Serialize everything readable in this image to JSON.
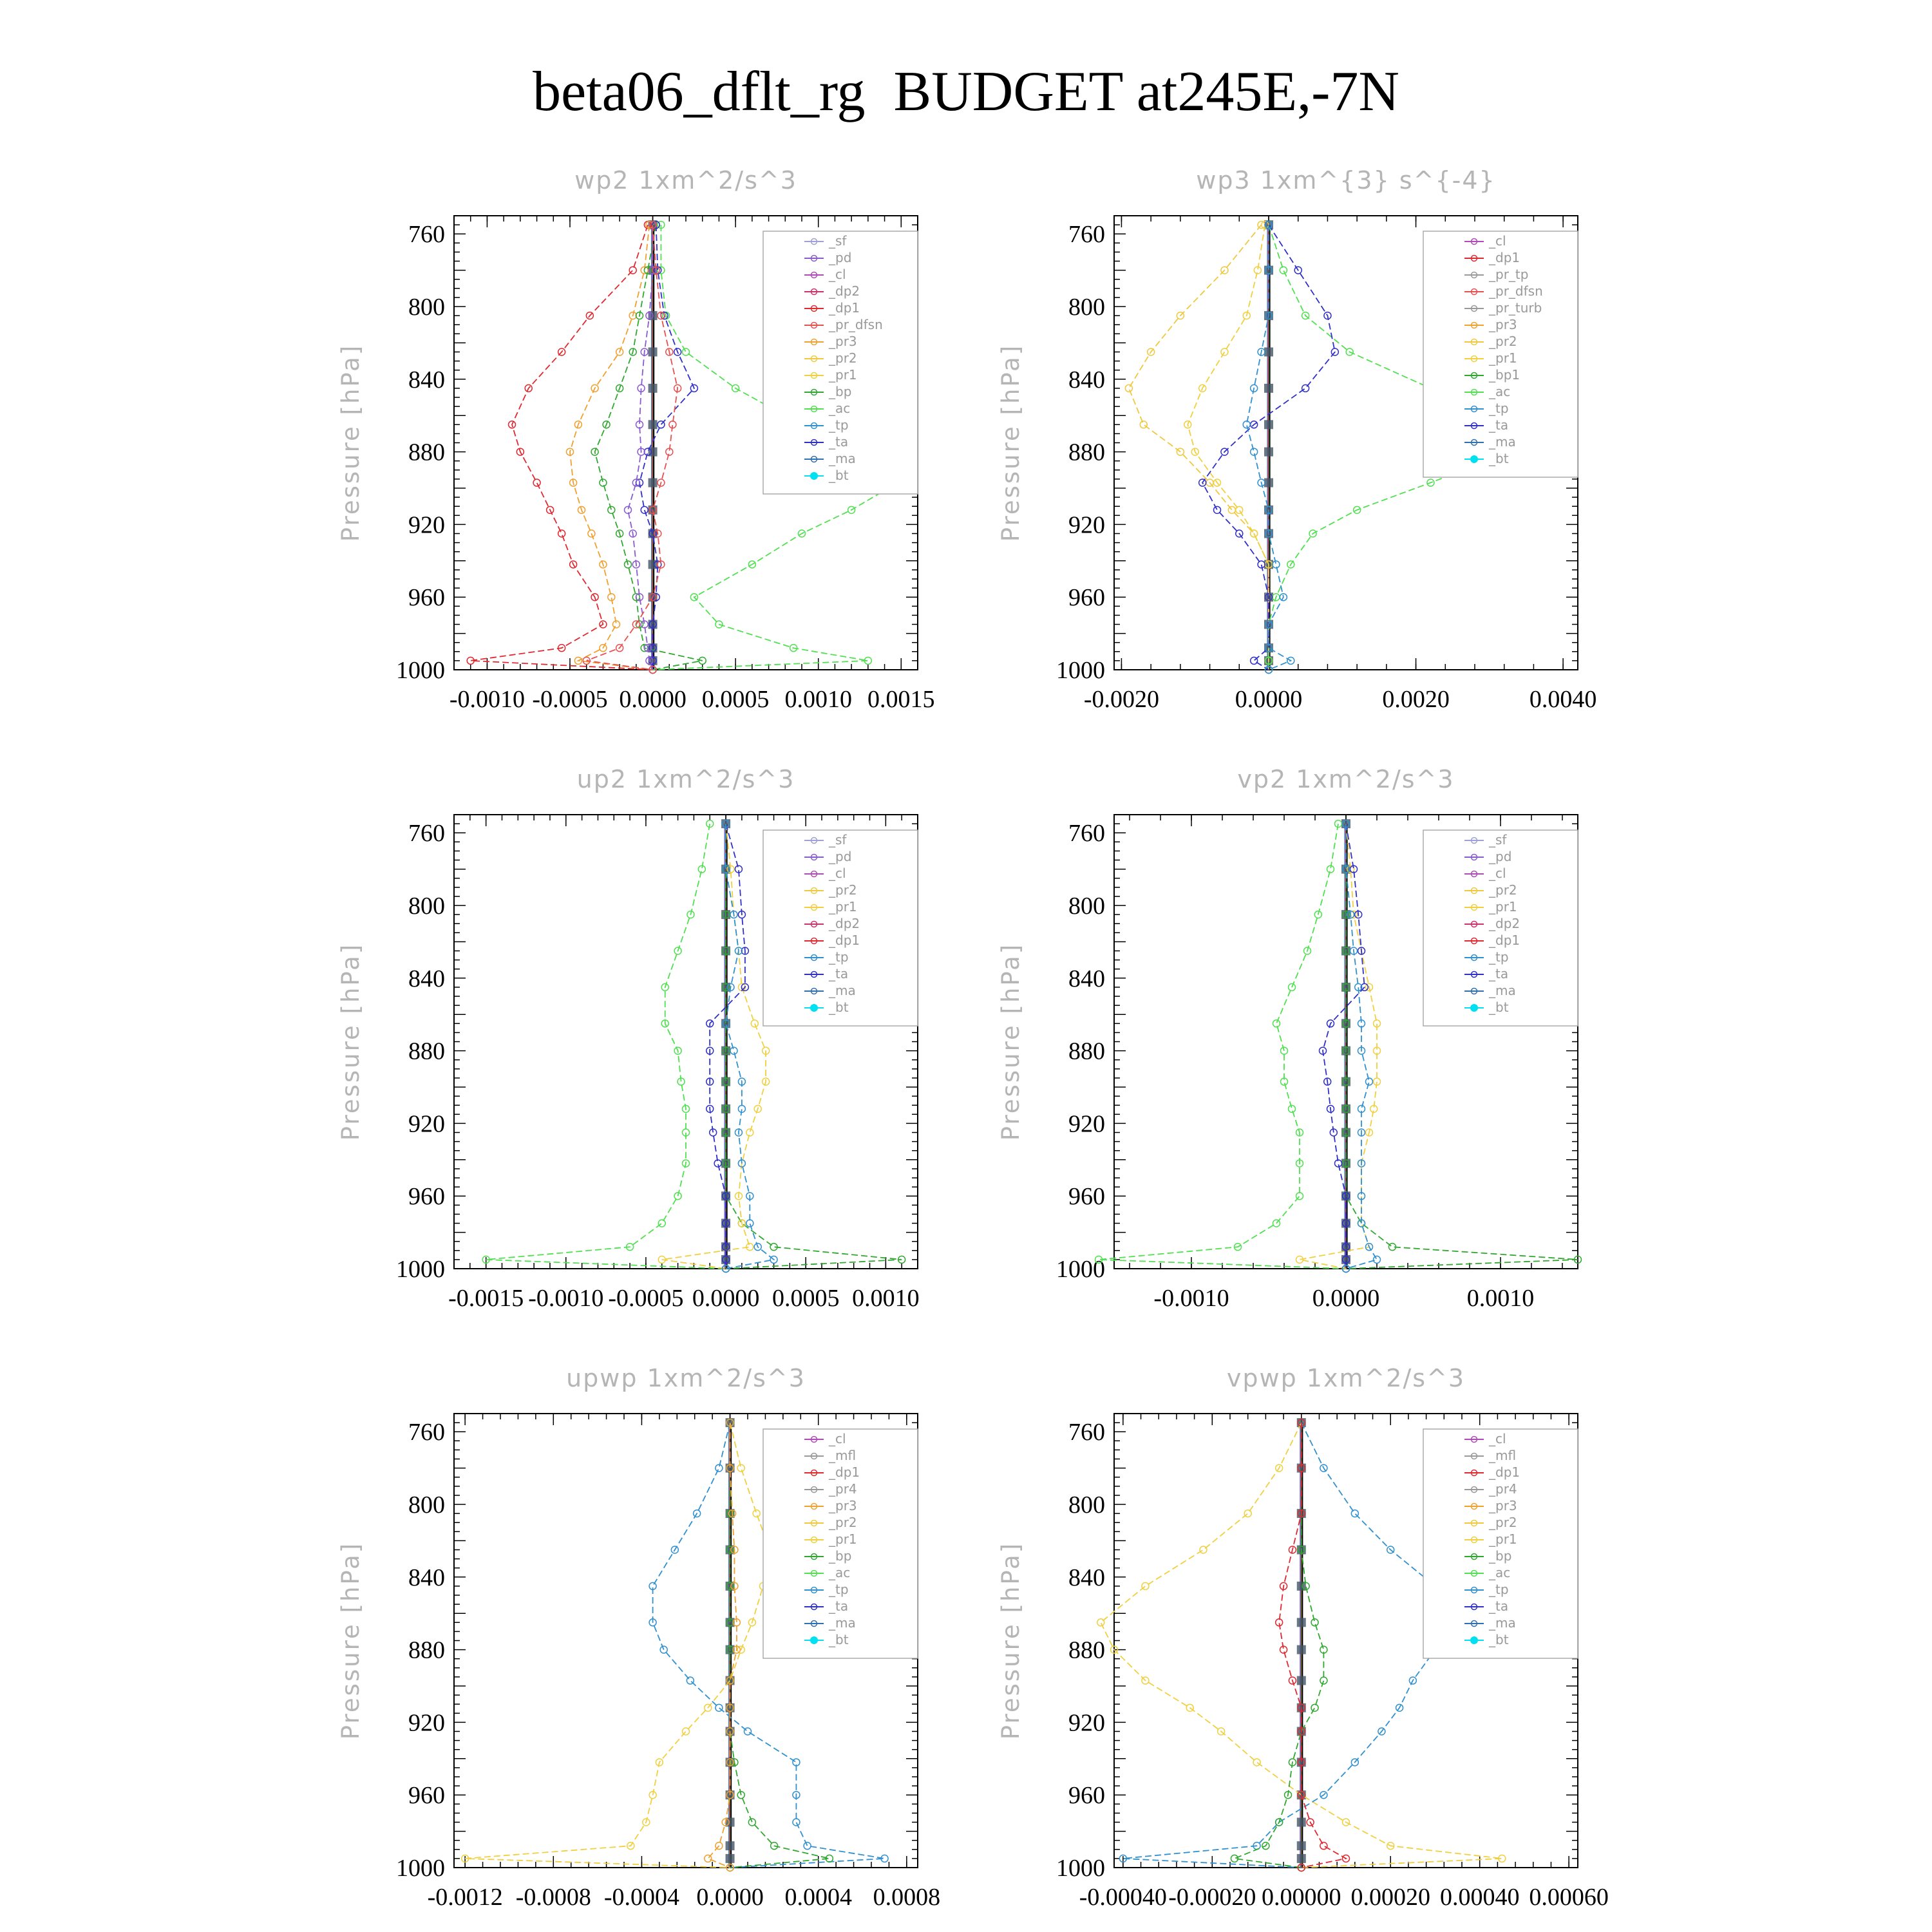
{
  "title": "beta06_dflt_rg  BUDGET at245E,-7N",
  "colors": {
    "sf": "#a0a0d8",
    "pd": "#8a5ad0",
    "cl": "#b04ab8",
    "dp2": "#d0306a",
    "dp1": "#e02830",
    "pr_dfsn": "#e85050",
    "pr3": "#f0a030",
    "pr2": "#f0c840",
    "pr1": "#f0d040",
    "bp": "#30a830",
    "ac": "#50e050",
    "tp": "#3090d0",
    "ta": "#3030c8",
    "ma": "#3070b0",
    "bt": "#00e0f0"
  },
  "chart_data": [
    {
      "type": "line",
      "title": "wp2   1xm^2/s^3",
      "ylabel": "Pressure [hPa]",
      "ylim": [
        1000,
        750
      ],
      "xlim": [
        -0.0012,
        0.0016
      ],
      "xticks": [
        -0.001,
        -0.0005,
        0.0,
        0.0005,
        0.001,
        0.0015
      ],
      "xtick_labels": [
        "-0.0010",
        "-0.0005",
        "0.0000",
        "0.0005",
        "0.0010",
        "0.0015"
      ],
      "yticks": [
        760,
        800,
        840,
        880,
        920,
        960,
        1000
      ],
      "legend": [
        "_sf",
        "_pd",
        "_cl",
        "_dp2",
        "_dp1",
        "_pr_dfsn",
        "_pr3",
        "_pr2",
        "_pr1",
        "_bp",
        "_ac",
        "_tp",
        "_ta",
        "_ma",
        "_bt"
      ],
      "levels": [
        755,
        780,
        805,
        825,
        845,
        865,
        880,
        897,
        912,
        925,
        942,
        960,
        975,
        988,
        995,
        1000
      ],
      "series": [
        {
          "name": "_dp1",
          "key": "dp1",
          "values": [
            -3e-05,
            -0.00012,
            -0.00038,
            -0.00055,
            -0.00075,
            -0.00085,
            -0.0008,
            -0.0007,
            -0.00062,
            -0.00055,
            -0.00048,
            -0.00035,
            -0.0003,
            -0.00055,
            -0.0011,
            0.0
          ]
        },
        {
          "name": "_pr3",
          "key": "pr3",
          "values": [
            -2e-05,
            -5e-05,
            -0.00012,
            -0.0002,
            -0.00035,
            -0.00045,
            -0.0005,
            -0.00048,
            -0.00043,
            -0.00037,
            -0.0003,
            -0.00025,
            -0.00022,
            -0.0003,
            -0.00045,
            0.0
          ]
        },
        {
          "name": "_bp",
          "key": "bp",
          "values": [
            2e-05,
            -3e-05,
            -8e-05,
            -0.00012,
            -0.0002,
            -0.00028,
            -0.00035,
            -0.0003,
            -0.00025,
            -0.0002,
            -0.00015,
            -0.0001,
            -8e-05,
            -5e-05,
            0.0003,
            0.0
          ]
        },
        {
          "name": "_ac",
          "key": "ac",
          "values": [
            5e-05,
            5e-05,
            8e-05,
            0.0002,
            0.0005,
            0.0009,
            0.00135,
            0.00148,
            0.0012,
            0.0009,
            0.0006,
            0.00025,
            0.0004,
            0.00085,
            0.0013,
            0.0
          ]
        },
        {
          "name": "_ta",
          "key": "ta",
          "values": [
            2e-05,
            3e-05,
            7e-05,
            0.00015,
            0.00025,
            5e-05,
            -3e-05,
            -8e-05,
            -5e-05,
            0.0,
            3e-05,
            2e-05,
            0.0,
            0.0,
            0.0,
            0.0
          ]
        },
        {
          "name": "_pd",
          "key": "pd",
          "values": [
            0.0,
            0.0,
            -2e-05,
            -5e-05,
            -7e-05,
            -8e-05,
            -7e-05,
            -0.0001,
            -0.00015,
            -0.00012,
            -0.0001,
            -8e-05,
            -5e-05,
            -3e-05,
            -2e-05,
            0.0
          ]
        },
        {
          "name": "_pr_dfsn",
          "key": "pr_dfsn",
          "values": [
            0.0,
            2e-05,
            5e-05,
            0.0001,
            0.00015,
            0.00012,
            0.0001,
            5e-05,
            0.0,
            3e-05,
            5e-05,
            0.0,
            -0.0001,
            -0.0002,
            -0.0004,
            0.0
          ]
        }
      ]
    },
    {
      "type": "line",
      "title": "wp3   1xm^{3} s^{-4}",
      "ylabel": "Pressure [hPa]",
      "ylim": [
        1000,
        750
      ],
      "xlim": [
        -0.0021,
        0.0042
      ],
      "xticks": [
        -0.002,
        0.0,
        0.002,
        0.004
      ],
      "xtick_labels": [
        "-0.0020",
        "0.0000",
        "0.0020",
        "0.0040"
      ],
      "yticks": [
        760,
        800,
        840,
        880,
        920,
        960,
        1000
      ],
      "legend": [
        "_cl",
        "_dp1",
        "_pr_tp",
        "_pr_dfsn",
        "_pr_turb",
        "_pr3",
        "_pr2",
        "_pr1",
        "_bp1",
        "_ac",
        "_tp",
        "_ta",
        "_ma",
        "_bt"
      ],
      "levels": [
        755,
        780,
        805,
        825,
        845,
        865,
        880,
        897,
        912,
        925,
        942,
        960,
        975,
        988,
        995,
        1000
      ],
      "series": [
        {
          "name": "_pr2",
          "key": "pr2",
          "values": [
            -0.0001,
            -0.0006,
            -0.0012,
            -0.0016,
            -0.0019,
            -0.0017,
            -0.0012,
            -0.0008,
            -0.0005,
            -0.0002,
            0.0,
            0.0,
            0.0,
            0.0,
            0.0,
            0.0
          ]
        },
        {
          "name": "_pr1",
          "key": "pr1",
          "values": [
            -5e-05,
            -0.00015,
            -0.0003,
            -0.0006,
            -0.0009,
            -0.0011,
            -0.001,
            -0.0007,
            -0.0004,
            -0.0002,
            0.0,
            0.0,
            0.0,
            0.0,
            0.0,
            0.0
          ]
        },
        {
          "name": "_ac",
          "key": "ac",
          "values": [
            0.0,
            0.0002,
            0.0005,
            0.0011,
            0.0022,
            0.0033,
            0.0033,
            0.0022,
            0.0012,
            0.0006,
            0.0003,
            0.0001,
            0.0,
            0.0,
            0.0,
            0.0
          ]
        },
        {
          "name": "_ta",
          "key": "ta",
          "values": [
            0.0,
            0.0004,
            0.0008,
            0.0009,
            0.0005,
            -0.0002,
            -0.0006,
            -0.0009,
            -0.0007,
            -0.0004,
            -0.0001,
            0.0,
            0.0,
            0.0,
            -0.0002,
            0.0
          ]
        },
        {
          "name": "_tp",
          "key": "tp",
          "values": [
            0.0,
            0.0,
            0.0,
            -0.0001,
            -0.0002,
            -0.0003,
            -0.0002,
            -0.0001,
            0.0,
            0.0,
            0.0001,
            0.0002,
            0.0,
            0.0,
            0.0003,
            0.0
          ]
        }
      ]
    },
    {
      "type": "line",
      "title": "up2   1xm^2/s^3",
      "ylabel": "Pressure [hPa]",
      "ylim": [
        1000,
        750
      ],
      "xlim": [
        -0.0017,
        0.0012
      ],
      "xticks": [
        -0.0015,
        -0.001,
        -0.0005,
        0.0,
        0.0005,
        0.001
      ],
      "xtick_labels": [
        "-0.0015",
        "-0.0010",
        "-0.0005",
        "0.0000",
        "0.0005",
        "0.0010"
      ],
      "yticks": [
        760,
        800,
        840,
        880,
        920,
        960,
        1000
      ],
      "legend": [
        "_sf",
        "_pd",
        "_cl",
        "_pr2",
        "_pr1",
        "_dp2",
        "_dp1",
        "_tp",
        "_ta",
        "_ma",
        "_bt"
      ],
      "levels": [
        755,
        780,
        805,
        825,
        845,
        865,
        880,
        897,
        912,
        925,
        942,
        960,
        975,
        988,
        995,
        1000
      ],
      "series": [
        {
          "name": "_dp1",
          "key": "ac",
          "values": [
            -0.0001,
            -0.00015,
            -0.00022,
            -0.0003,
            -0.00038,
            -0.00038,
            -0.0003,
            -0.00028,
            -0.00025,
            -0.00025,
            -0.00025,
            -0.0003,
            -0.0004,
            -0.0006,
            -0.0015,
            0.0
          ]
        },
        {
          "name": "_dp2",
          "key": "bp",
          "values": [
            0.0,
            0.0,
            0.0,
            0.0,
            0.0,
            0.0,
            0.0,
            0.0,
            0.0,
            0.0,
            0.0,
            0.0,
            0.0001,
            0.0003,
            0.0011,
            0.0
          ]
        },
        {
          "name": "_pr1",
          "key": "pr1",
          "values": [
            0.0,
            3e-05,
            5e-05,
            8e-05,
            0.0001,
            0.00018,
            0.00025,
            0.00025,
            0.0002,
            0.00015,
            0.0001,
            8e-05,
            0.0001,
            0.00015,
            -0.0004,
            0.0
          ]
        },
        {
          "name": "_ta",
          "key": "ta",
          "values": [
            0.0,
            8e-05,
            0.0001,
            0.00012,
            0.00012,
            -0.0001,
            -0.0001,
            -0.0001,
            -0.0001,
            -8e-05,
            -5e-05,
            0.0,
            0.0,
            0.0,
            0.0,
            0.0
          ]
        },
        {
          "name": "_ma",
          "key": "tp",
          "values": [
            0.0,
            0.0,
            5e-05,
            8e-05,
            3e-05,
            0.0,
            5e-05,
            0.0001,
            0.0001,
            8e-05,
            0.0001,
            0.00015,
            0.00015,
            0.0002,
            0.0003,
            0.0
          ]
        }
      ]
    },
    {
      "type": "line",
      "title": "vp2   1xm^2/s^3",
      "ylabel": "Pressure [hPa]",
      "ylim": [
        1000,
        750
      ],
      "xlim": [
        -0.0015,
        0.0015
      ],
      "xticks": [
        -0.001,
        0.0,
        0.001
      ],
      "xtick_labels": [
        "-0.0010",
        "0.0000",
        "0.0010"
      ],
      "yticks": [
        760,
        800,
        840,
        880,
        920,
        960,
        1000
      ],
      "legend": [
        "_sf",
        "_pd",
        "_cl",
        "_pr2",
        "_pr1",
        "_dp2",
        "_dp1",
        "_tp",
        "_ta",
        "_ma",
        "_bt"
      ],
      "levels": [
        755,
        780,
        805,
        825,
        845,
        865,
        880,
        897,
        912,
        925,
        942,
        960,
        975,
        988,
        995,
        1000
      ],
      "series": [
        {
          "name": "_dp1",
          "key": "ac",
          "values": [
            -5e-05,
            -0.0001,
            -0.00018,
            -0.00025,
            -0.00035,
            -0.00045,
            -0.0004,
            -0.0004,
            -0.00035,
            -0.0003,
            -0.0003,
            -0.0003,
            -0.00045,
            -0.0007,
            -0.0016,
            0.0
          ]
        },
        {
          "name": "_dp2",
          "key": "bp",
          "values": [
            0.0,
            0.0,
            0.0,
            0.0,
            0.0,
            0.0,
            0.0,
            0.0,
            0.0,
            0.0,
            0.0,
            0.0,
            0.0001,
            0.0003,
            0.0015,
            0.0
          ]
        },
        {
          "name": "_pr1",
          "key": "pr1",
          "values": [
            0.0,
            3e-05,
            5e-05,
            0.0001,
            0.00015,
            0.0002,
            0.0002,
            0.0002,
            0.00018,
            0.00015,
            0.0001,
            0.0001,
            0.0001,
            0.00015,
            -0.0003,
            0.0
          ]
        },
        {
          "name": "_ta",
          "key": "ta",
          "values": [
            0.0,
            5e-05,
            8e-05,
            0.0001,
            0.00012,
            -0.0001,
            -0.00015,
            -0.00012,
            -0.0001,
            -8e-05,
            -5e-05,
            0.0,
            0.0,
            0.0,
            0.0,
            0.0
          ]
        },
        {
          "name": "_ma",
          "key": "tp",
          "values": [
            0.0,
            0.0,
            3e-05,
            5e-05,
            8e-05,
            0.0001,
            0.0001,
            0.00015,
            0.0001,
            0.0001,
            0.0001,
            0.0001,
            0.0001,
            0.00015,
            0.0002,
            0.0
          ]
        }
      ]
    },
    {
      "type": "line",
      "title": "upwp   1xm^2/s^3",
      "ylabel": "Pressure [hPa]",
      "ylim": [
        1000,
        750
      ],
      "xlim": [
        -0.00125,
        0.00085
      ],
      "xticks": [
        -0.0012,
        -0.0008,
        -0.0004,
        0.0,
        0.0004,
        0.0008
      ],
      "xtick_labels": [
        "-0.0012",
        "-0.0008",
        "-0.0004",
        "0.0000",
        "0.0004",
        "0.0008"
      ],
      "yticks": [
        760,
        800,
        840,
        880,
        920,
        960,
        1000
      ],
      "legend": [
        "_cl",
        "_mfl",
        "_dp1",
        "_pr4",
        "_pr3",
        "_pr2",
        "_pr1",
        "_bp",
        "_ac",
        "_tp",
        "_ta",
        "_ma",
        "_bt"
      ],
      "levels": [
        755,
        780,
        805,
        825,
        845,
        865,
        880,
        897,
        912,
        925,
        942,
        960,
        975,
        988,
        995,
        1000
      ],
      "series": [
        {
          "name": "_pr1",
          "key": "pr1",
          "values": [
            0.0,
            5e-05,
            0.00012,
            0.00018,
            0.00015,
            0.0001,
            5e-05,
            0.0,
            -0.0001,
            -0.0002,
            -0.00032,
            -0.00035,
            -0.00038,
            -0.00045,
            -0.0012,
            0.0
          ]
        },
        {
          "name": "_ma",
          "key": "tp",
          "values": [
            0.0,
            -5e-05,
            -0.00015,
            -0.00025,
            -0.00035,
            -0.00035,
            -0.0003,
            -0.00018,
            -5e-05,
            8e-05,
            0.0003,
            0.0003,
            0.0003,
            0.00035,
            0.0007,
            0.0
          ]
        },
        {
          "name": "_bp",
          "key": "bp",
          "values": [
            0.0,
            0.0,
            0.0,
            0.0,
            0.0,
            0.0,
            0.0,
            0.0,
            0.0,
            0.0,
            2e-05,
            5e-05,
            0.0001,
            0.0002,
            0.00045,
            0.0
          ]
        },
        {
          "name": "_pr3",
          "key": "pr3",
          "values": [
            0.0,
            0.0,
            1e-05,
            2e-05,
            2e-05,
            3e-05,
            3e-05,
            0.0,
            0.0,
            0.0,
            0.0,
            0.0,
            -2e-05,
            -5e-05,
            -0.0001,
            0.0
          ]
        }
      ]
    },
    {
      "type": "line",
      "title": "vpwp   1xm^2/s^3",
      "ylabel": "Pressure [hPa]",
      "ylim": [
        1000,
        750
      ],
      "xlim": [
        -0.00042,
        0.00062
      ],
      "xticks": [
        -0.0004,
        -0.0002,
        0.0,
        0.0002,
        0.0004,
        0.0006
      ],
      "xtick_labels": [
        "-0.00040",
        "-0.00020",
        "0.00000",
        "0.00020",
        "0.00040",
        "0.00060"
      ],
      "yticks": [
        760,
        800,
        840,
        880,
        920,
        960,
        1000
      ],
      "legend": [
        "_cl",
        "_mfl",
        "_dp1",
        "_pr4",
        "_pr3",
        "_pr2",
        "_pr1",
        "_bp",
        "_ac",
        "_tp",
        "_ta",
        "_ma",
        "_bt"
      ],
      "levels": [
        755,
        780,
        805,
        825,
        845,
        865,
        880,
        897,
        912,
        925,
        942,
        960,
        975,
        988,
        995,
        1000
      ],
      "series": [
        {
          "name": "_pr1",
          "key": "pr1",
          "values": [
            0.0,
            -5e-05,
            -0.00012,
            -0.00022,
            -0.00035,
            -0.00045,
            -0.00042,
            -0.00035,
            -0.00025,
            -0.00018,
            -0.0001,
            0.0,
            0.0001,
            0.0002,
            0.00045,
            0.0
          ]
        },
        {
          "name": "_ma",
          "key": "tp",
          "values": [
            0.0,
            5e-05,
            0.00012,
            0.0002,
            0.0003,
            0.00035,
            0.0003,
            0.00025,
            0.00022,
            0.00018,
            0.00012,
            5e-05,
            -5e-05,
            -0.0001,
            -0.0004,
            0.0
          ]
        },
        {
          "name": "_bp",
          "key": "bp",
          "values": [
            0.0,
            0.0,
            0.0,
            0.0,
            1e-05,
            3e-05,
            5e-05,
            5e-05,
            3e-05,
            0.0,
            -2e-05,
            -3e-05,
            -5e-05,
            -8e-05,
            -0.00015,
            0.0
          ]
        },
        {
          "name": "_dp1",
          "key": "dp1",
          "values": [
            0.0,
            0.0,
            0.0,
            -2e-05,
            -4e-05,
            -5e-05,
            -4e-05,
            -2e-05,
            0.0,
            0.0,
            0.0,
            0.0,
            2e-05,
            5e-05,
            0.0001,
            0.0
          ]
        }
      ]
    }
  ]
}
